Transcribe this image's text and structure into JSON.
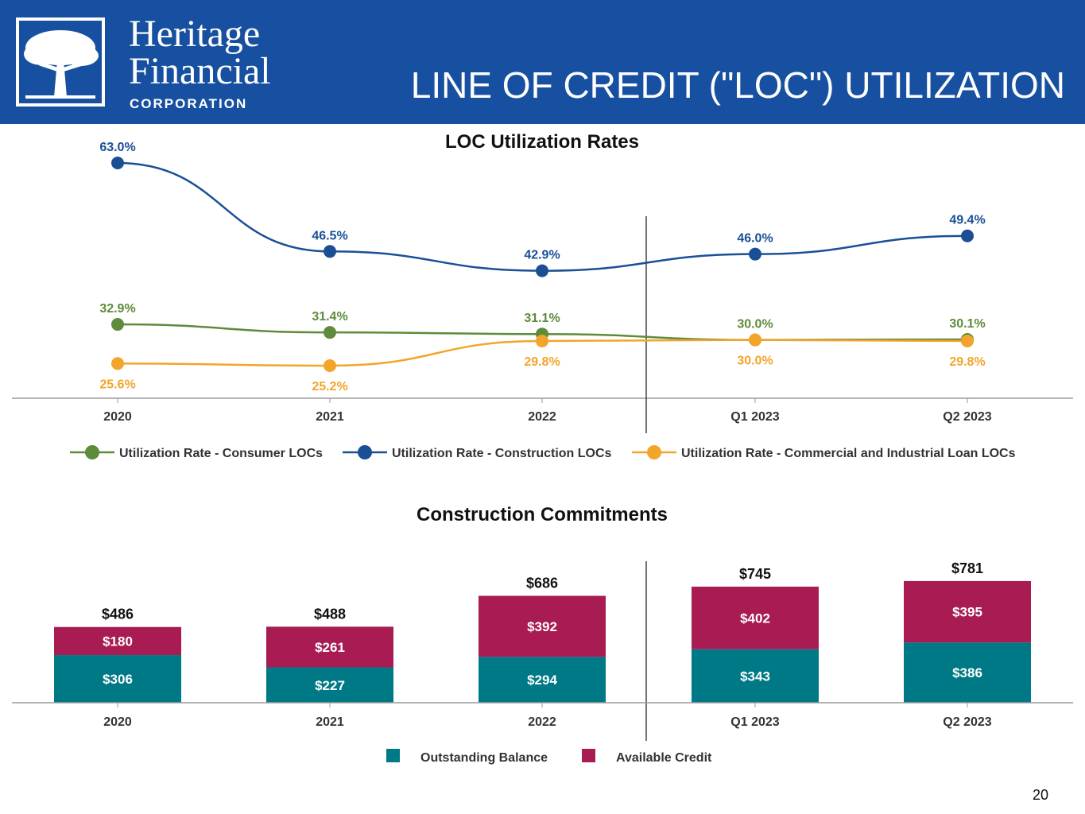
{
  "logo": {
    "line1": "Heritage",
    "line2": "Financial",
    "line3": "CORPORATION"
  },
  "slide_title": "LINE OF CREDIT (\"LOC\") UTILIZATION",
  "page_number": "20",
  "colors": {
    "header": "#1750a0",
    "consumer": "#5e8b3c",
    "construction": "#1a4f96",
    "commercial": "#f2a52a",
    "outstanding": "#007987",
    "available": "#a81c53"
  },
  "chart_data": [
    {
      "type": "line",
      "title": "LOC Utilization Rates",
      "categories": [
        "2020",
        "2021",
        "2022",
        "Q1 2023",
        "Q2 2023"
      ],
      "ylim": [
        20,
        65
      ],
      "series": [
        {
          "name": "Utilization Rate - Consumer LOCs",
          "color": "#5e8b3c",
          "label_pos": "above",
          "values": [
            32.9,
            31.4,
            31.1,
            30.0,
            30.1
          ],
          "labels": [
            "32.9%",
            "31.4%",
            "31.1%",
            "30.0%",
            "30.1%"
          ]
        },
        {
          "name": "Utilization Rate - Construction LOCs",
          "color": "#1a4f96",
          "label_pos": "above",
          "values": [
            63.0,
            46.5,
            42.9,
            46.0,
            49.4
          ],
          "labels": [
            "63.0%",
            "46.5%",
            "42.9%",
            "46.0%",
            "49.4%"
          ]
        },
        {
          "name": "Utilization Rate - Commercial and Industrial Loan LOCs",
          "color": "#f2a52a",
          "label_pos": "below",
          "values": [
            25.6,
            25.2,
            29.8,
            30.0,
            29.8
          ],
          "labels": [
            "25.6%",
            "25.2%",
            "29.8%",
            "30.0%",
            "29.8%"
          ]
        }
      ]
    },
    {
      "type": "bar",
      "stacked": true,
      "title": "Construction Commitments",
      "categories": [
        "2020",
        "2021",
        "2022",
        "Q1 2023",
        "Q2 2023"
      ],
      "totals": [
        "$486",
        "$488",
        "$686",
        "$745",
        "$781"
      ],
      "ylim": [
        0,
        900
      ],
      "series": [
        {
          "name": "Outstanding Balance",
          "color": "#007987",
          "values": [
            306,
            227,
            294,
            343,
            386
          ],
          "labels": [
            "$306",
            "$227",
            "$294",
            "$343",
            "$386"
          ]
        },
        {
          "name": "Available Credit",
          "color": "#a81c53",
          "values": [
            180,
            261,
            392,
            402,
            395
          ],
          "labels": [
            "$180",
            "$261",
            "$392",
            "$402",
            "$395"
          ]
        }
      ]
    }
  ]
}
